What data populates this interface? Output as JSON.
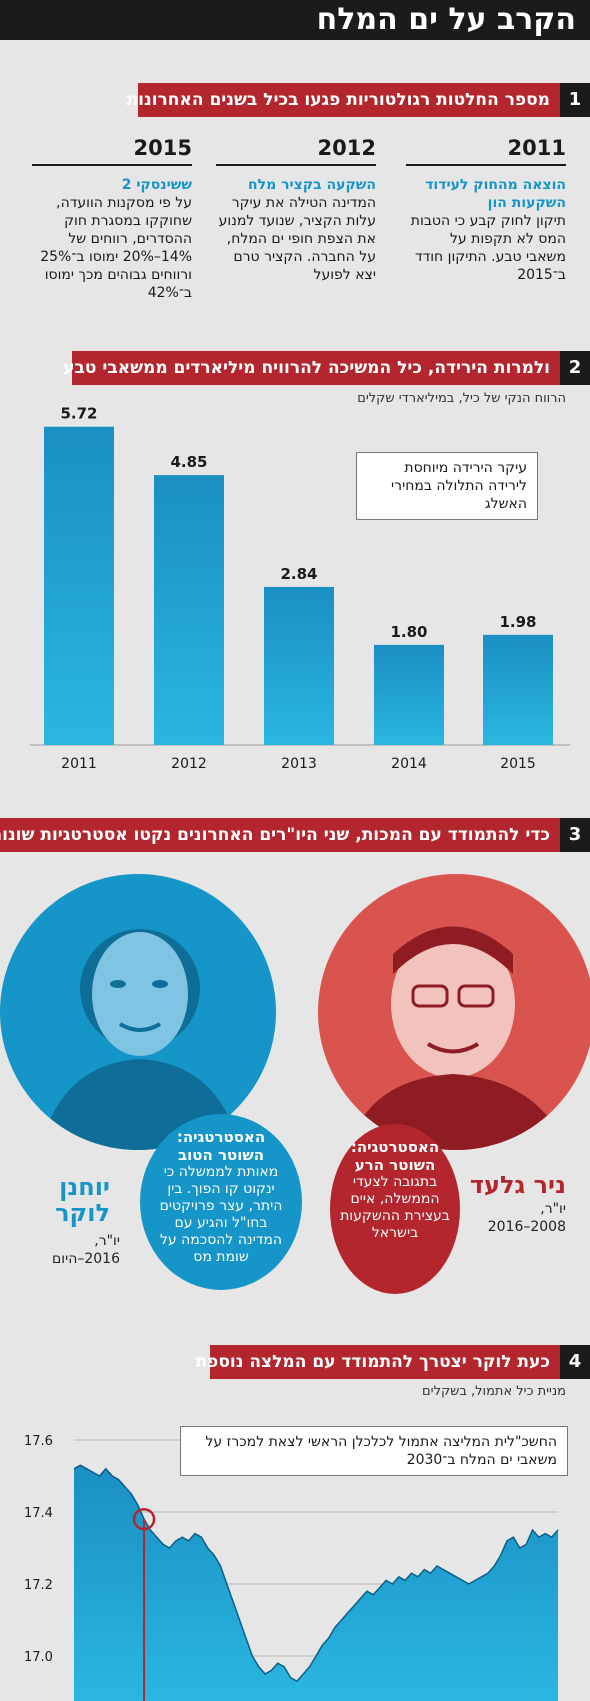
{
  "title": "הקרב על ים המלח",
  "sections": {
    "s1": {
      "num": "1",
      "title": "מספר החלטות רגולטוריות פגעו בכיל בשנים האחרונות"
    },
    "s2": {
      "num": "2",
      "title": "ולמרות הירידה, כיל המשיכה להרוויח מיליארדים ממשאבי טבע"
    },
    "s3": {
      "num": "3",
      "title": "כדי להתמודד עם המכות, שני היו\"רים האחרונים נקטו אסטרטגיות שונות"
    },
    "s4": {
      "num": "4",
      "title": "כעת לוקר יצטרך להתמודד עם המלצה נוספת"
    }
  },
  "decisions": [
    {
      "year": "2011",
      "headline": "הוצאה מהחוק לעידוד השקעות הון",
      "body": "תיקון לחוק קבע כי הטבות המס לא תקפות על משאבי טבע. התיקון חודד ב־2015"
    },
    {
      "year": "2012",
      "headline": "השקעה בקציר מלח",
      "body": "המדינה הטילה את עיקר עלות הקציר, שנועד למנוע את הצפת חופי ים המלח, על החברה. הקציר טרם יצא לפועל"
    },
    {
      "year": "2015",
      "headline": "ששינסקי 2",
      "body": "על פי מסקנות הוועדה, שחוקקו במסגרת חוק ההסדרים, רווחים של 14%–20% ימוסו ב־25% ורווחים גבוהים מכך ימוסו ב־42%"
    }
  ],
  "profit_subtitle": "הרווח הנקי של כיל, במיליארדי שקלים",
  "profit_callout": "עיקר הירידה מיוחסת לירידה התלולה במחירי האשלג",
  "strategies": {
    "gilad": {
      "name": "ניר גלעד",
      "role": "יו\"ר,",
      "years": "2008–2016",
      "strategy_head": "האסטרטגיה: השוטר הרע",
      "strategy_body": "בתגובה לצעדי הממשלה, איים בעצירת ההשקעות בישראל"
    },
    "locker": {
      "name": "יוחנן לוקר",
      "role": "יו\"ר,",
      "years": "2016–היום",
      "strategy_head": "האסטרטגיה: השוטר הטוב",
      "strategy_body": "מאותת לממשלה כי ינקוט קו הפוך. בין היתר, עצר פרויקטים בחו\"ל והגיע עם המדינה להסכמה על שומת מס"
    }
  },
  "stock_subtitle": "מניית כיל אתמול, בשקלים",
  "stock_callout": "החשכ\"לית המליצה אתמול לכלכלן הראשי לצאת למכרז על משאבי ים המלח ב־2030",
  "colors": {
    "red": "#b3262d",
    "blue": "#1595c8",
    "dark": "#1b1b1b"
  },
  "chart_data": [
    {
      "type": "bar",
      "categories": [
        "2011",
        "2012",
        "2013",
        "2014",
        "2015"
      ],
      "values": [
        5.72,
        4.85,
        2.84,
        1.8,
        1.98
      ],
      "value_labels": [
        "5.72",
        "4.85",
        "2.84",
        "1.80",
        "1.98"
      ],
      "ylim": [
        0,
        6.2
      ]
    },
    {
      "type": "area",
      "ylim": [
        16.9,
        17.65
      ],
      "y_ticks": [
        "17.6",
        "17.4",
        "17.2",
        "17.0"
      ],
      "y_tick_values": [
        17.6,
        17.4,
        17.2,
        17.0
      ],
      "values": [
        17.52,
        17.53,
        17.52,
        17.51,
        17.5,
        17.52,
        17.5,
        17.49,
        17.47,
        17.45,
        17.42,
        17.38,
        17.35,
        17.33,
        17.31,
        17.3,
        17.32,
        17.33,
        17.32,
        17.34,
        17.33,
        17.3,
        17.28,
        17.25,
        17.2,
        17.15,
        17.1,
        17.05,
        17.0,
        16.97,
        16.95,
        16.96,
        16.98,
        16.97,
        16.94,
        16.93,
        16.95,
        16.97,
        17.0,
        17.03,
        17.05,
        17.08,
        17.1,
        17.12,
        17.14,
        17.16,
        17.18,
        17.17,
        17.19,
        17.21,
        17.2,
        17.22,
        17.21,
        17.23,
        17.22,
        17.24,
        17.23,
        17.25,
        17.24,
        17.23,
        17.22,
        17.21,
        17.2,
        17.21,
        17.22,
        17.23,
        17.25,
        17.28,
        17.32,
        17.33,
        17.3,
        17.31,
        17.35,
        17.33,
        17.34,
        17.33,
        17.35
      ],
      "marker_index": 11
    }
  ]
}
